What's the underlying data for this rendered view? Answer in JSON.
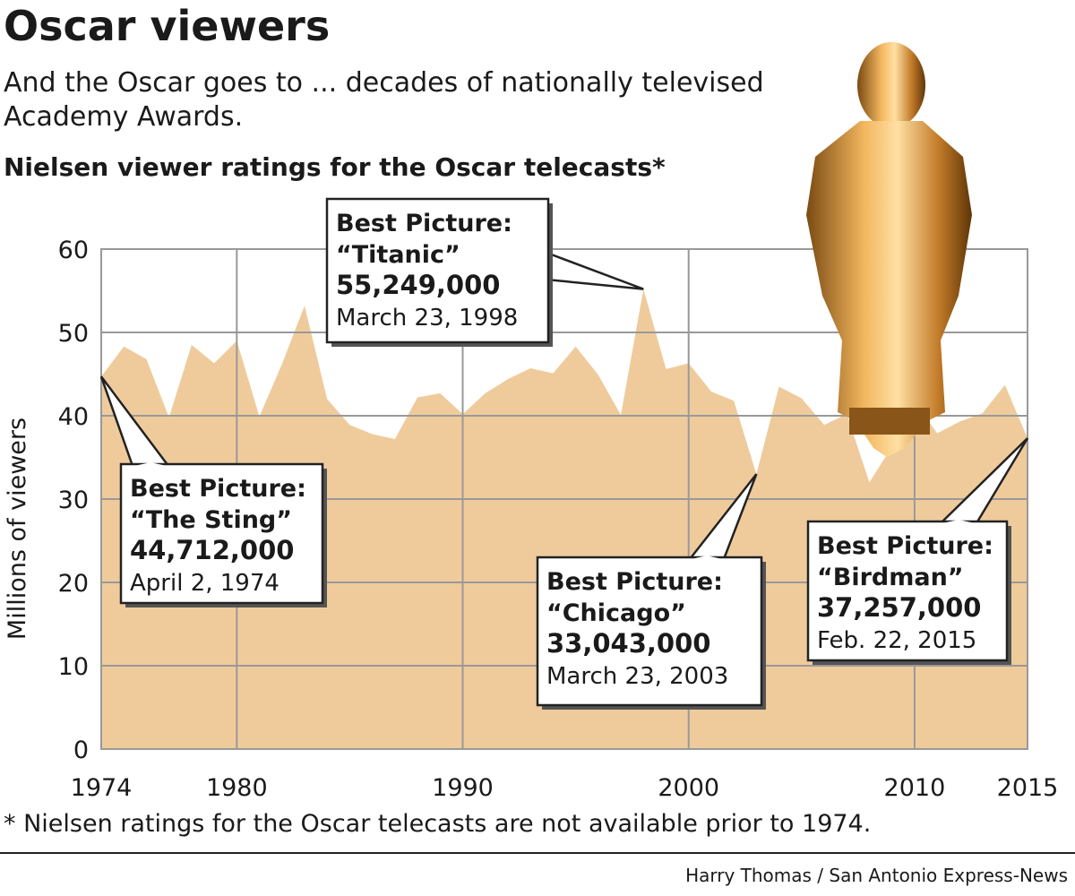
{
  "chart_data": {
    "type": "area",
    "title": "Oscar viewers",
    "subtitle": [
      "And the Oscar goes to ... decades of nationally televised",
      "Academy Awards."
    ],
    "chart_title": "Nielsen viewer ratings for the Oscar telecasts*",
    "y_label": "Millions of viewers",
    "x": [
      1974,
      1975,
      1976,
      1977,
      1978,
      1979,
      1980,
      1981,
      1982,
      1983,
      1984,
      1985,
      1986,
      1987,
      1988,
      1989,
      1990,
      1991,
      1992,
      1993,
      1994,
      1995,
      1996,
      1997,
      1998,
      1999,
      2000,
      2001,
      2002,
      2003,
      2004,
      2005,
      2006,
      2007,
      2008,
      2009,
      2010,
      2011,
      2012,
      2013,
      2014,
      2015
    ],
    "values": [
      44.7,
      48.3,
      46.8,
      39.8,
      48.5,
      46.3,
      49.0,
      39.9,
      46.2,
      53.2,
      42.0,
      38.9,
      37.8,
      37.2,
      42.2,
      42.7,
      40.2,
      42.7,
      44.4,
      45.7,
      45.1,
      48.3,
      44.9,
      40.1,
      55.2,
      45.6,
      46.3,
      42.9,
      41.8,
      33.0,
      43.5,
      42.1,
      38.9,
      40.2,
      32.0,
      36.3,
      41.7,
      37.9,
      39.3,
      40.3,
      43.7,
      37.3
    ],
    "color": "#efcb9c",
    "xlim": [
      1974,
      2015
    ],
    "ylim": [
      0,
      60
    ],
    "xticks": [
      1974,
      1980,
      1990,
      2000,
      2010,
      2015
    ],
    "yticks": [
      0,
      10,
      20,
      30,
      40,
      50,
      60
    ],
    "grid": true,
    "annotations": [
      {
        "heading": "Best Picture:",
        "film": "“The Sting”",
        "viewers": "44,712,000",
        "date": "April 2, 1974"
      },
      {
        "heading": "Best Picture:",
        "film": "“Titanic”",
        "viewers": "55,249,000",
        "date": "March 23, 1998"
      },
      {
        "heading": "Best Picture:",
        "film": "“Chicago”",
        "viewers": "33,043,000",
        "date": "March 23, 2003"
      },
      {
        "heading": "Best Picture:",
        "film": "“Birdman”",
        "viewers": "37,257,000",
        "date": "Feb. 22, 2015"
      }
    ],
    "footnote": "* Nielsen ratings for the Oscar telecasts are not available prior to 1974.",
    "credit": "Harry Thomas / San Antonio Express-News"
  }
}
